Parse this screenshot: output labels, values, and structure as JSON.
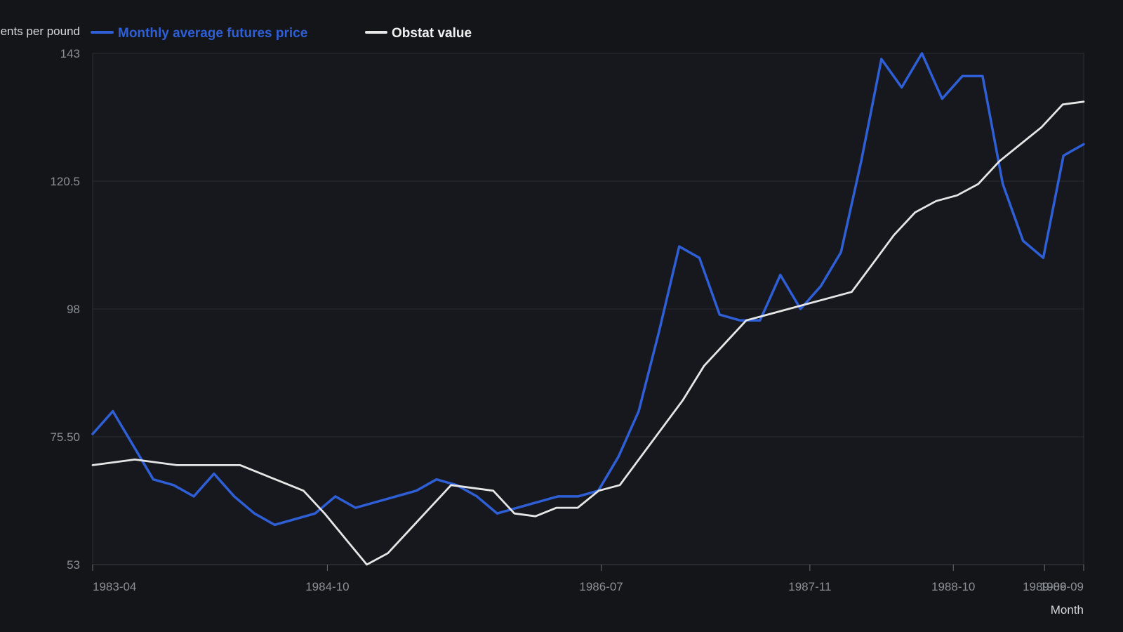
{
  "chart_data": {
    "type": "line",
    "ylabel": "Cents per pound",
    "xlabel": "Month",
    "ylim": [
      53,
      143
    ],
    "yticks": [
      "143",
      "120.5",
      "98",
      "75.50",
      "53"
    ],
    "ytick_values": [
      143,
      120.5,
      98,
      75.5,
      53
    ],
    "xtick_labels": [
      "1983-04",
      "1984-10",
      "1986-07",
      "1987-11",
      "1988-10",
      "1989-06",
      "1989-09"
    ],
    "xtick_index": [
      0,
      18,
      39,
      55,
      66,
      73,
      76
    ],
    "grid": true,
    "legend_position": "top-left",
    "series": [
      {
        "name": "Monthly average futures price",
        "color": "#2f5fd6",
        "values": [
          76,
          80,
          74,
          68,
          67,
          65,
          69,
          65,
          62,
          60,
          61,
          62,
          65,
          63,
          64,
          65,
          66,
          68,
          67,
          65,
          62,
          63,
          64,
          65,
          65,
          66,
          72,
          80,
          94,
          109,
          107,
          97,
          96,
          96,
          104,
          98,
          102,
          108,
          124,
          142,
          137,
          143,
          135,
          139,
          139,
          120,
          110,
          107,
          125,
          127
        ]
      },
      {
        "name": "Obstat value",
        "color": "#e6e6e6",
        "values": [
          70.5,
          71,
          71.5,
          71,
          70.5,
          70.5,
          70.5,
          70.5,
          69,
          67.5,
          66,
          62,
          57.5,
          53,
          55,
          59,
          63,
          67,
          66.5,
          66,
          62,
          61.5,
          63,
          63,
          66,
          67,
          72,
          77,
          82,
          88,
          92,
          96,
          97,
          98,
          99,
          100,
          101,
          106,
          111,
          115,
          117,
          118,
          120,
          124,
          127,
          130,
          134,
          134.5
        ]
      }
    ]
  }
}
